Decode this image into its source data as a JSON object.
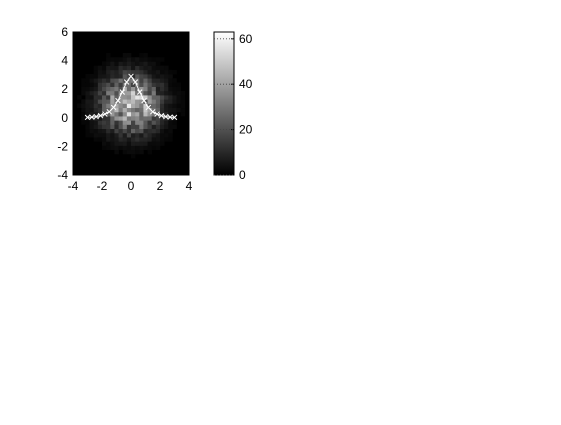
{
  "chart_data": [
    {
      "type": "heatmap",
      "title": "",
      "xlabel": "",
      "ylabel": "",
      "xlim": [
        -4,
        4
      ],
      "ylim": [
        -4,
        6
      ],
      "xticks": [
        -4,
        -2,
        0,
        2,
        4
      ],
      "yticks": [
        -4,
        -2,
        0,
        2,
        4,
        6
      ],
      "xtick_labels": [
        "-4",
        "-2",
        "0",
        "2",
        "4"
      ],
      "ytick_labels": [
        "-4",
        "-2",
        "0",
        "2",
        "4",
        "6"
      ],
      "colormap": "gray",
      "grid": false,
      "density_peak": [
        0,
        1
      ],
      "value_range": [
        0,
        63
      ],
      "overlay_series": [
        {
          "type": "line",
          "marker": "x",
          "color": "#ffffff",
          "x": [
            -3,
            -2.7,
            -2.4,
            -2.1,
            -1.8,
            -1.5,
            -1.2,
            -0.9,
            -0.6,
            -0.3,
            0,
            0.3,
            0.6,
            0.9,
            1.2,
            1.5,
            1.8,
            2.1,
            2.4,
            2.7,
            3
          ],
          "y": [
            0.03,
            0.05,
            0.08,
            0.15,
            0.26,
            0.42,
            0.73,
            1.2,
            1.8,
            2.5,
            2.9,
            2.5,
            1.8,
            1.2,
            0.73,
            0.42,
            0.26,
            0.15,
            0.08,
            0.05,
            0.03
          ]
        }
      ]
    },
    {
      "type": "colorbar",
      "colormap": "gray",
      "range": [
        0,
        63
      ],
      "ticks": [
        0,
        20,
        40,
        60
      ],
      "tick_labels": [
        "0",
        "20",
        "40",
        "60"
      ]
    }
  ]
}
